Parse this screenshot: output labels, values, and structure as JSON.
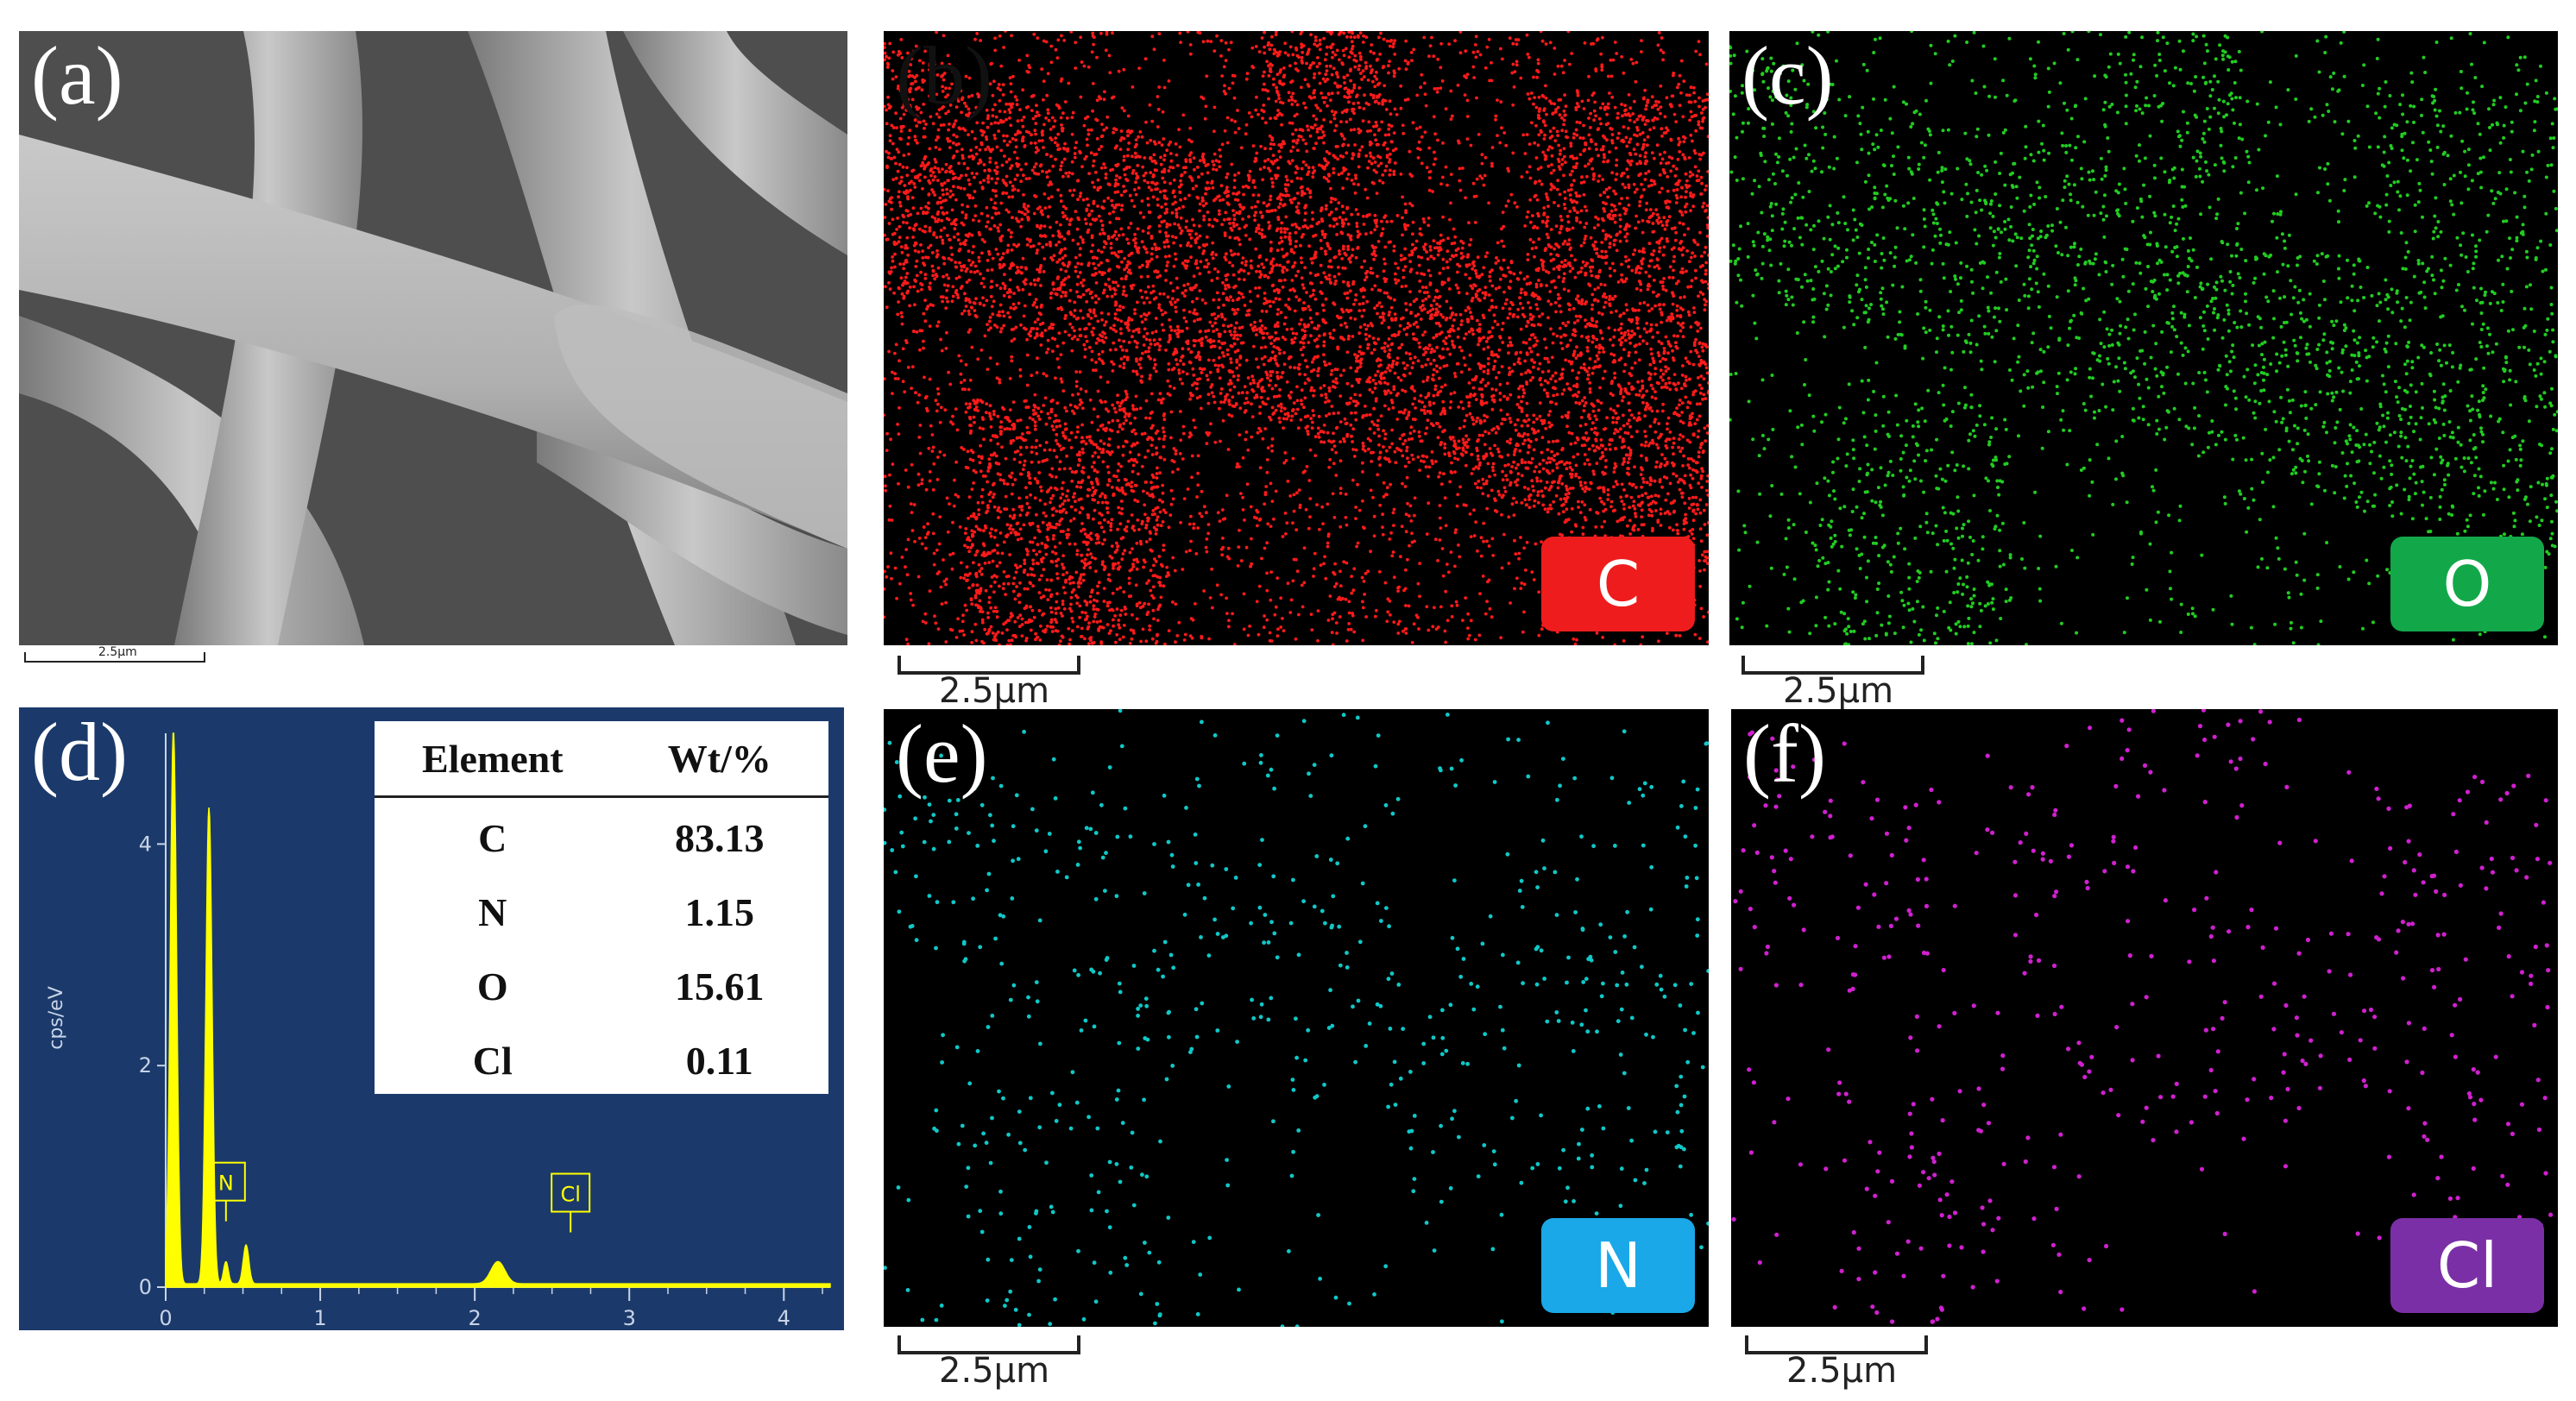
{
  "panels": {
    "a": {
      "label": "(a)",
      "scale_text": "2.5μm"
    },
    "b": {
      "label": "(b)",
      "element": "C",
      "color": "#ff1a1a",
      "badge_color": "#ee1c1c",
      "scale_text": "2.5μm"
    },
    "c": {
      "label": "(c)",
      "element": "O",
      "color": "#22cc22",
      "badge_color": "#12a84a",
      "scale_text": "2.5μm"
    },
    "d": {
      "label": "(d)"
    },
    "e": {
      "label": "(e)",
      "element": "N",
      "color": "#10c8c8",
      "badge_color": "#1aa8e8",
      "scale_text": "2.5μm"
    },
    "f": {
      "label": "(f)",
      "element": "Cl",
      "color": "#d020d0",
      "badge_color": "#7b2fa6",
      "scale_text": "2.5μm"
    }
  },
  "composition_table": {
    "headers": [
      "Element",
      "Wt/%"
    ],
    "rows": [
      {
        "element": "C",
        "wt": "83.13"
      },
      {
        "element": "N",
        "wt": "1.15"
      },
      {
        "element": "O",
        "wt": "15.61"
      },
      {
        "element": "Cl",
        "wt": "0.11"
      }
    ]
  },
  "chart_data": {
    "type": "line",
    "ylabel": "cps/eV",
    "xlim": [
      0,
      4.3
    ],
    "ylim": [
      0,
      5
    ],
    "x_ticks": [
      "0",
      "1",
      "2",
      "3",
      "4"
    ],
    "y_ticks": [
      "0",
      "2",
      "4"
    ],
    "peak_labels": [
      "N",
      "Cl"
    ],
    "peaks": [
      {
        "x": 0.05,
        "y": 5.0
      },
      {
        "x": 0.28,
        "y": 4.3
      },
      {
        "x": 0.39,
        "y": 0.2
      },
      {
        "x": 0.52,
        "y": 0.35
      },
      {
        "x": 2.15,
        "y": 0.2
      }
    ],
    "colors": {
      "background": "#1b3a6b",
      "trace": "#ffff00",
      "axis": "#c8d4e8"
    }
  }
}
